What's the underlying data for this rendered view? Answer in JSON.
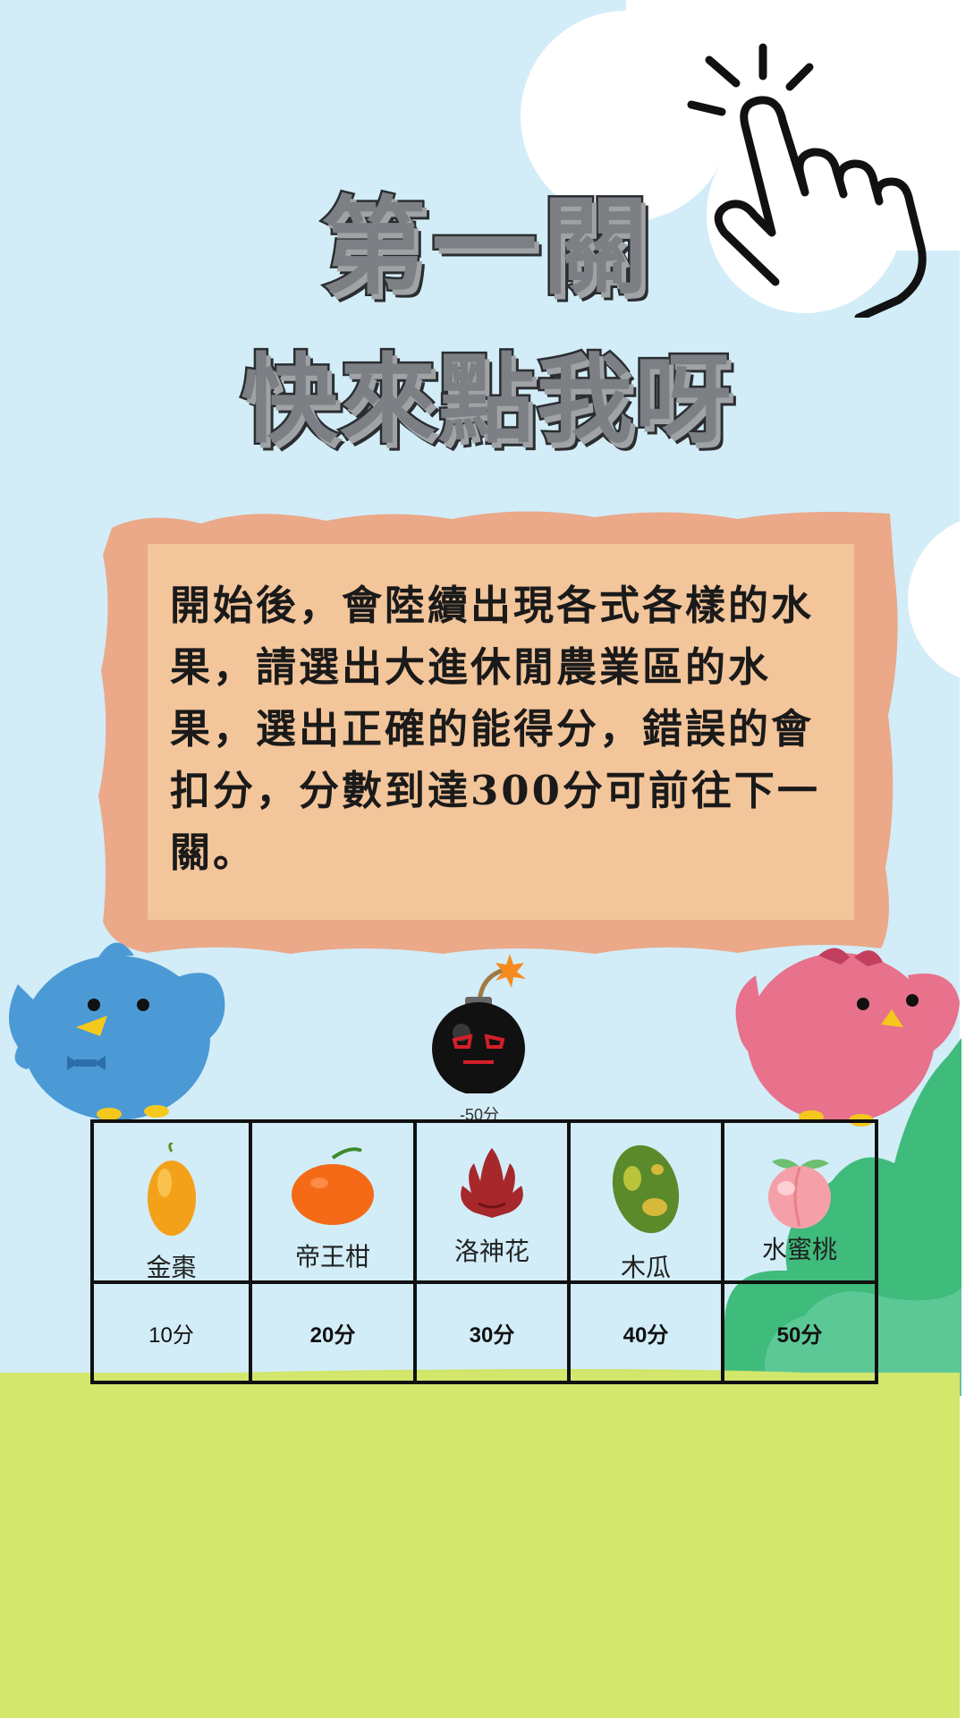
{
  "title": {
    "line1": "第一關",
    "line2": "快來點我呀"
  },
  "instructions": {
    "text": "開始後，會陸續出現各式各樣的水果，請選出大進休閒農業區的水果，選出正確的能得分，錯誤的會扣分，分數到達300分可前往下一關。"
  },
  "bomb": {
    "label": "-50分",
    "icon": "bomb-icon"
  },
  "fruits": [
    {
      "name": "金棗",
      "score": "10分",
      "icon": "kumquat-icon",
      "color": "#f4a11a"
    },
    {
      "name": "帝王柑",
      "score": "20分",
      "icon": "orange-icon",
      "color": "#f56a16"
    },
    {
      "name": "洛神花",
      "score": "30分",
      "icon": "roselle-icon",
      "color": "#a7282b"
    },
    {
      "name": "木瓜",
      "score": "40分",
      "icon": "papaya-icon",
      "color": "#5b8a2a"
    },
    {
      "name": "水蜜桃",
      "score": "50分",
      "icon": "peach-icon",
      "color": "#f5a0a8"
    }
  ],
  "colors": {
    "sky": "#d2edf8",
    "grass": "#d3e76d",
    "board_outer": "#eba98a",
    "board_inner": "#f3c59a",
    "blue_bird": "#4b9ad6",
    "pink_bird": "#e8718c",
    "bush": "#3fbb7c"
  }
}
